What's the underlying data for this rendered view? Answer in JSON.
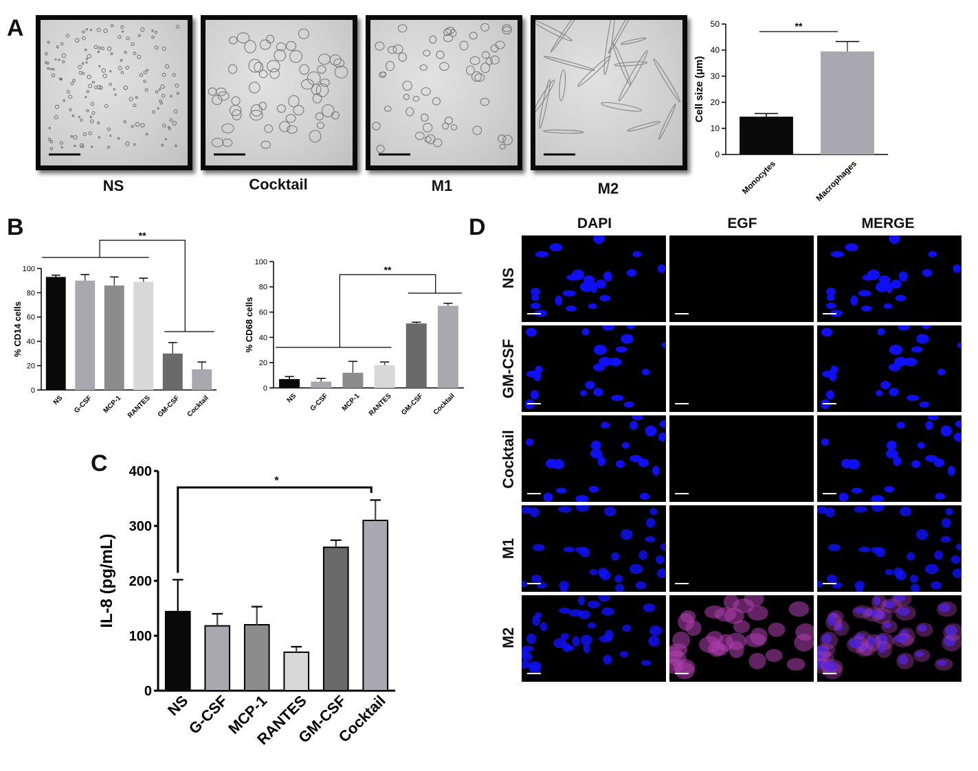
{
  "panels": {
    "a_label": "A",
    "b_label": "B",
    "c_label": "C",
    "d_label": "D"
  },
  "panel_a": {
    "images": [
      {
        "label": "NS",
        "kind": "dots"
      },
      {
        "label": "Cocktail",
        "kind": "cells"
      },
      {
        "label": "M1",
        "kind": "round"
      },
      {
        "label": "M2",
        "kind": "elongated"
      }
    ]
  },
  "panel_d": {
    "columns": [
      "DAPI",
      "EGF",
      "MERGE"
    ],
    "rows": [
      "NS",
      "GM-CSF",
      "Cocktail",
      "M1",
      "M2"
    ]
  },
  "colors": {
    "black": "#0a0a0a",
    "light_gray": "#a9a8b0",
    "mid_gray": "#8c8c8c",
    "pale_gray": "#d8d8d8",
    "dark_gray": "#6a6a6a",
    "nucleus_blue": "#1010ff",
    "egf_magenta": "#b040b0"
  },
  "chart_data": [
    {
      "id": "cell-size",
      "type": "bar",
      "categories": [
        "Monocytes",
        "Macrophages"
      ],
      "values": [
        14.5,
        39.5
      ],
      "errors": [
        1.2,
        3.8
      ],
      "colors": [
        "#0a0a0a",
        "#a9a8b0"
      ],
      "ylabel": "Cell size (μm)",
      "ylim": [
        0,
        50
      ],
      "yticks": [
        0,
        10,
        20,
        30,
        40,
        50
      ],
      "significance": "**"
    },
    {
      "id": "cd14",
      "type": "bar",
      "categories": [
        "NS",
        "G-CSF",
        "MCP-1",
        "RANTES",
        "GM-CSF",
        "Cocktail"
      ],
      "values": [
        93,
        90,
        86,
        89,
        30,
        17
      ],
      "errors": [
        1.5,
        5,
        7,
        3,
        9,
        6
      ],
      "colors": [
        "#0a0a0a",
        "#a9a8b0",
        "#8c8c8c",
        "#d8d8d8",
        "#6a6a6a",
        "#a9a8b0"
      ],
      "ylabel": "% CD14 cells",
      "ylim": [
        0,
        100
      ],
      "yticks": [
        0,
        20,
        40,
        60,
        80,
        100
      ],
      "significance": "**"
    },
    {
      "id": "cd68",
      "type": "bar",
      "categories": [
        "NS",
        "G-CSF",
        "MCP-1",
        "RANTES",
        "GM-CSF",
        "Cocktail"
      ],
      "values": [
        7,
        5,
        12,
        18,
        51,
        65
      ],
      "errors": [
        2,
        2.5,
        9,
        2.5,
        1,
        2
      ],
      "colors": [
        "#0a0a0a",
        "#a9a8b0",
        "#8c8c8c",
        "#d8d8d8",
        "#6a6a6a",
        "#a9a8b0"
      ],
      "ylabel": "% CD68 cells",
      "ylim": [
        0,
        100
      ],
      "yticks": [
        0,
        20,
        40,
        60,
        80,
        100
      ],
      "significance": "**"
    },
    {
      "id": "il8",
      "type": "bar",
      "categories": [
        "NS",
        "G-CSF",
        "MCP-1",
        "RANTES",
        "GM-CSF",
        "Cocktail"
      ],
      "values": [
        144,
        118,
        120,
        70,
        261,
        310
      ],
      "errors": [
        58,
        22,
        33,
        10,
        13,
        37
      ],
      "colors": [
        "#0a0a0a",
        "#a9a8b0",
        "#8c8c8c",
        "#d8d8d8",
        "#6a6a6a",
        "#a9a8b0"
      ],
      "ylabel": "IL-8 (pg/mL)",
      "ylim": [
        0,
        400
      ],
      "yticks": [
        0,
        100,
        200,
        300,
        400
      ],
      "significance": "*"
    }
  ]
}
